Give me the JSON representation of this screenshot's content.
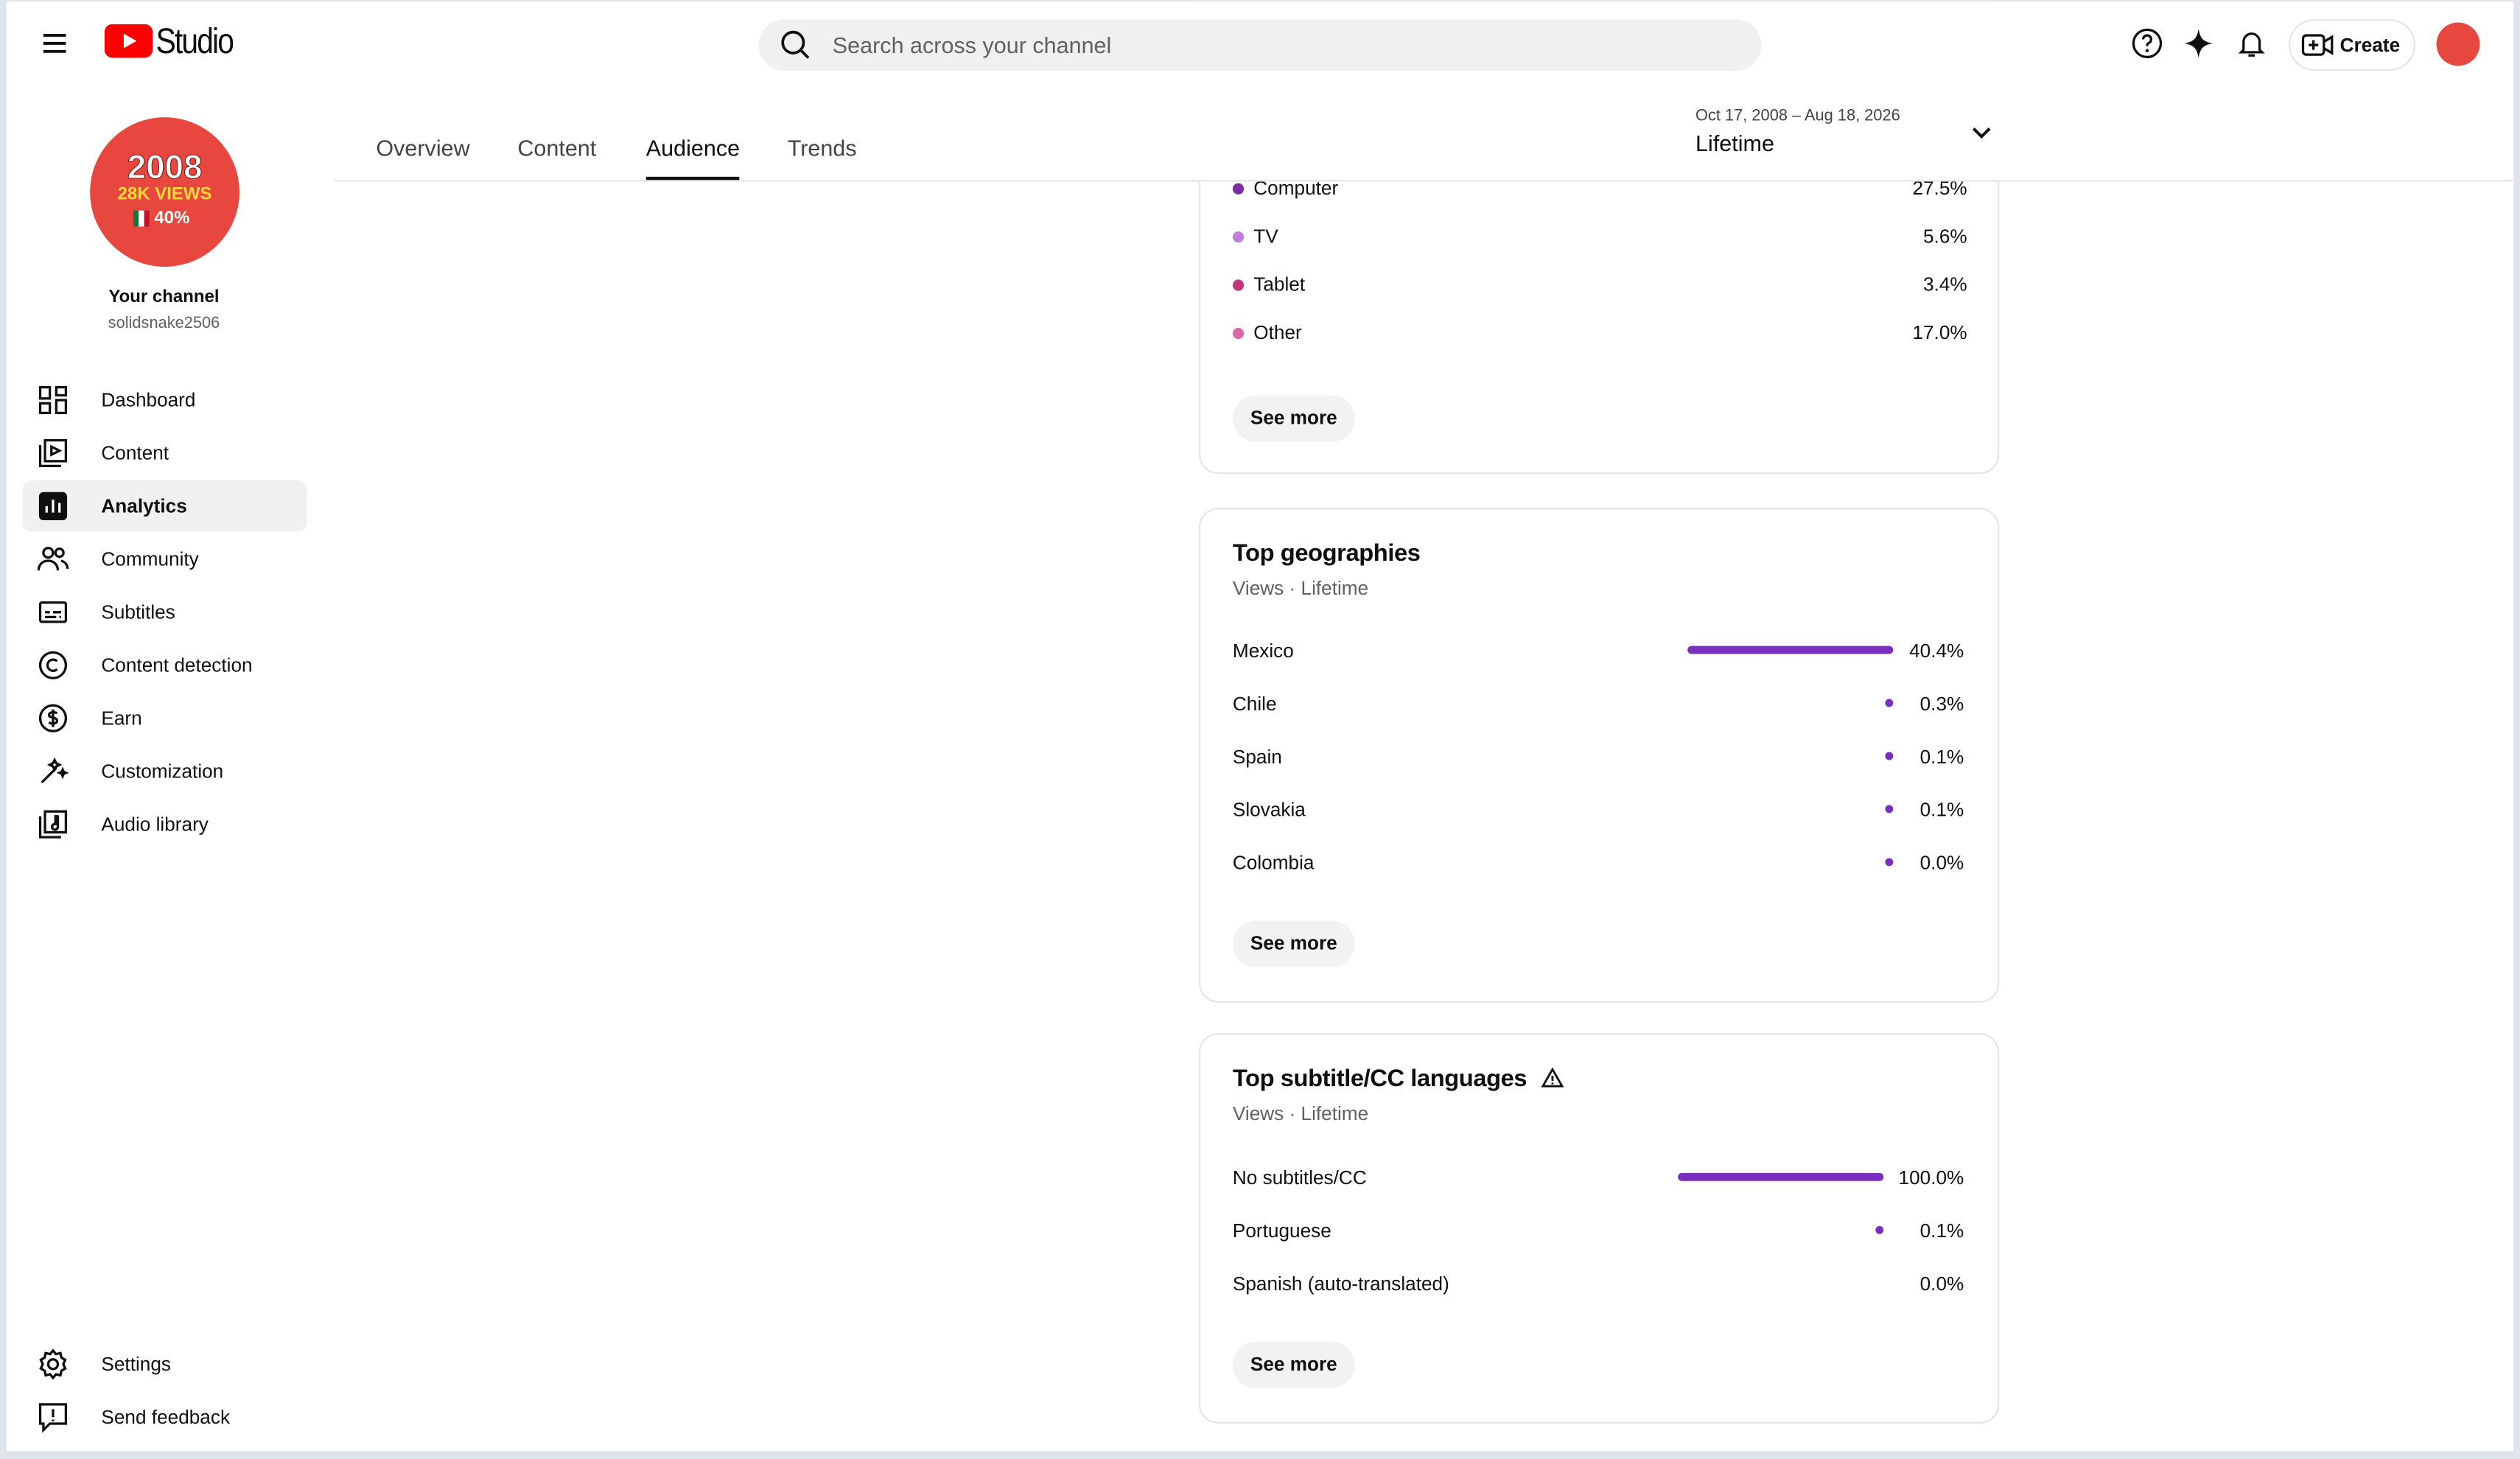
{
  "header": {
    "brand": "Studio",
    "search_placeholder": "Search across your channel",
    "create": "Create"
  },
  "channel": {
    "avatar_year": "2008",
    "avatar_views": "28K VIEWS",
    "avatar_share": "40%",
    "name": "Your channel",
    "handle": "solidsnake2506"
  },
  "nav": [
    "Dashboard",
    "Content",
    "Analytics",
    "Community",
    "Subtitles",
    "Content detection",
    "Earn",
    "Customization",
    "Audio library"
  ],
  "active_nav": 2,
  "nav_bottom": [
    "Settings",
    "Send feedback"
  ],
  "tabs": [
    "Overview",
    "Content",
    "Audience",
    "Trends"
  ],
  "active_tab": 2,
  "date_range": {
    "range": "Oct 17, 2008 – Aug 18, 2026",
    "period": "Lifetime"
  },
  "devices": {
    "items": [
      {
        "label": "Computer",
        "value": 27.5,
        "value_label": "27.5%",
        "color": "#7b2ea8"
      },
      {
        "label": "TV",
        "value": 5.6,
        "value_label": "5.6%",
        "color": "#c07fe0"
      },
      {
        "label": "Tablet",
        "value": 3.4,
        "value_label": "3.4%",
        "color": "#c2367a"
      },
      {
        "label": "Other",
        "value": 17.0,
        "value_label": "17.0%",
        "color": "#d96aa6"
      }
    ],
    "button": "See more"
  },
  "geographies": {
    "title": "Top geographies",
    "subtitle": "Views · Lifetime",
    "color": "#7b2fbe",
    "items": [
      {
        "label": "Mexico",
        "value": 40.4,
        "value_label": "40.4%"
      },
      {
        "label": "Chile",
        "value": 0.3,
        "value_label": "0.3%"
      },
      {
        "label": "Spain",
        "value": 0.1,
        "value_label": "0.1%"
      },
      {
        "label": "Slovakia",
        "value": 0.1,
        "value_label": "0.1%"
      },
      {
        "label": "Colombia",
        "value": 0.04,
        "value_label": "0.0%"
      }
    ],
    "button": "See more"
  },
  "languages": {
    "title": "Top subtitle/CC languages",
    "subtitle": "Views · Lifetime",
    "color": "#7b2fbe",
    "items": [
      {
        "label": "No subtitles/CC",
        "value": 100.0,
        "value_label": "100.0%"
      },
      {
        "label": "Portuguese",
        "value": 0.1,
        "value_label": "0.1%"
      },
      {
        "label": "Spanish (auto-translated)",
        "value": 0,
        "value_label": "0.0%"
      }
    ],
    "button": "See more"
  }
}
